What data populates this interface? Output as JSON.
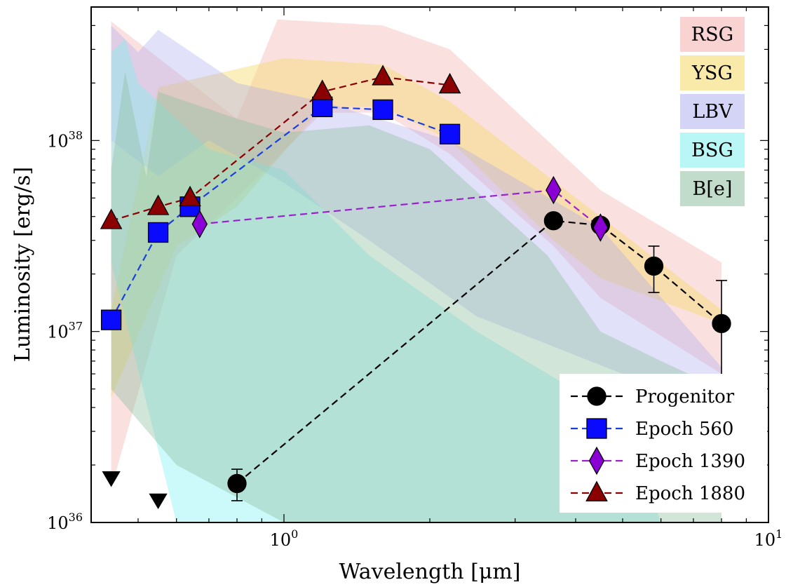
{
  "chart_data": {
    "type": "scatter",
    "xlabel": "Wavelength [μm]",
    "ylabel": "Luminosity [erg/s]",
    "x_scale": "log",
    "y_scale": "log",
    "xlim": [
      0.4,
      10
    ],
    "ylim": [
      1e+36,
      5e+38
    ],
    "grid": false,
    "x_ticks": [
      {
        "value": 1,
        "base": "10",
        "exp": "0"
      },
      {
        "value": 10,
        "base": "10",
        "exp": "1"
      }
    ],
    "y_ticks": [
      {
        "value": 1e+36,
        "base": "10",
        "exp": "36"
      },
      {
        "value": 1e+37,
        "base": "10",
        "exp": "37"
      },
      {
        "value": 1e+38,
        "base": "10",
        "exp": "38"
      }
    ],
    "bands": [
      {
        "name": "RSG",
        "color": "#f4a6a6",
        "opacity": 0.35,
        "upper": [
          [
            0.44,
            4.2e+38
          ],
          [
            0.8,
            1.3e+38
          ],
          [
            0.97,
            4.3e+38
          ],
          [
            1.6,
            4e+38
          ],
          [
            2.2,
            3e+38
          ],
          [
            4.5,
            5.5e+37
          ],
          [
            8.0,
            2.3e+37
          ]
        ],
        "lower": [
          [
            8.0,
            6e+36
          ],
          [
            4.5,
            1.5e+37
          ],
          [
            3.6,
            2.8e+37
          ],
          [
            2.2,
            8.5e+37
          ],
          [
            1.6,
            1.4e+38
          ],
          [
            1.2,
            1.4e+38
          ],
          [
            0.8,
            5e+37
          ],
          [
            0.6,
            2.5e+37
          ],
          [
            0.44,
            1.5e+36
          ]
        ]
      },
      {
        "name": "YSG",
        "color": "#f7dc6f",
        "opacity": 0.45,
        "upper": [
          [
            0.44,
            1.3e+37
          ],
          [
            0.55,
            1.9e+38
          ],
          [
            1.0,
            2.7e+38
          ],
          [
            1.6,
            2.5e+38
          ],
          [
            2.2,
            1.6e+38
          ],
          [
            4.5,
            4e+37
          ],
          [
            8.0,
            1.3e+37
          ]
        ],
        "lower": [
          [
            8.0,
            1.1e+37
          ],
          [
            4.5,
            1.9e+37
          ],
          [
            3.6,
            3e+37
          ],
          [
            2.2,
            1e+38
          ],
          [
            1.6,
            1.5e+38
          ],
          [
            1.2,
            1.5e+38
          ],
          [
            0.8,
            4.5e+37
          ],
          [
            0.6,
            2.8e+37
          ],
          [
            0.44,
            4.5e+36
          ]
        ]
      },
      {
        "name": "LBV",
        "color": "#a9a9ef",
        "opacity": 0.35,
        "upper": [
          [
            0.44,
            4e+38
          ],
          [
            0.5,
            2.9e+38
          ],
          [
            0.55,
            3.8e+38
          ],
          [
            0.8,
            2e+38
          ],
          [
            1.2,
            1.6e+38
          ],
          [
            2.2,
            1e+38
          ],
          [
            4.5,
            3.5e+37
          ],
          [
            8.0,
            6.5e+36
          ]
        ],
        "lower": [
          [
            8.0,
            5e+36
          ],
          [
            5.0,
            6e+36
          ],
          [
            2.5,
            1.2e+37
          ],
          [
            1.5,
            3e+37
          ],
          [
            1.0,
            6e+37
          ],
          [
            0.7,
            1e+38
          ],
          [
            0.55,
            6.5e+37
          ],
          [
            0.44,
            1e+38
          ]
        ]
      },
      {
        "name": "BSG",
        "color": "#7fefef",
        "opacity": 0.4,
        "upper": [
          [
            0.44,
            2.9e+38
          ],
          [
            0.47,
            3.4e+38
          ],
          [
            0.5,
            2e+38
          ],
          [
            0.7,
            9e+37
          ],
          [
            1.0,
            7e+37
          ],
          [
            1.5,
            2.5e+37
          ],
          [
            2.5,
            1e+37
          ],
          [
            5.0,
            3.5e+36
          ],
          [
            6.0,
            1e+36
          ]
        ],
        "lower": [
          [
            5.0,
            1e+36
          ],
          [
            2.0,
            1e+36
          ],
          [
            1.0,
            1e+36
          ],
          [
            0.6,
            1e+36
          ],
          [
            0.44,
            2.3e+37
          ]
        ]
      },
      {
        "name": "B[e]",
        "color": "#8fbfa0",
        "opacity": 0.4,
        "upper": [
          [
            0.44,
            7e+37
          ],
          [
            0.47,
            2.3e+38
          ],
          [
            0.52,
            6.5e+37
          ],
          [
            0.55,
            1.8e+38
          ],
          [
            0.8,
            1.3e+38
          ],
          [
            1.0,
            1.1e+38
          ],
          [
            1.5,
            1.2e+38
          ],
          [
            2.0,
            9e+37
          ],
          [
            3.5,
            2.5e+37
          ],
          [
            4.5,
            1e+37
          ],
          [
            6.0,
            7e+36
          ],
          [
            8.0,
            5e+36
          ]
        ],
        "lower": [
          [
            8.0,
            1e+36
          ],
          [
            4.5,
            1e+36
          ],
          [
            2.0,
            1e+36
          ],
          [
            1.0,
            1e+36
          ],
          [
            0.6,
            2e+36
          ],
          [
            0.44,
            5e+36
          ]
        ]
      }
    ],
    "series": [
      {
        "name": "Progenitor",
        "marker": "circle",
        "color": "#000000",
        "line_color": "#000000",
        "points": [
          {
            "x": 0.8,
            "y": 1.6e+36,
            "err": [
              1.3e+36,
              1.9e+36
            ]
          },
          {
            "x": 3.6,
            "y": 3.8e+37
          },
          {
            "x": 4.5,
            "y": 3.6e+37
          },
          {
            "x": 5.8,
            "y": 2.2e+37,
            "err": [
              1.6e+37,
              2.8e+37
            ]
          },
          {
            "x": 8.0,
            "y": 1.1e+37,
            "err": [
              5.5e+36,
              1.85e+37
            ]
          }
        ],
        "connect_from": 0,
        "upper_limits": [
          {
            "x": 0.44,
            "y": 1.7e+36
          },
          {
            "x": 0.55,
            "y": 1.3e+36
          }
        ]
      },
      {
        "name": "Epoch 560",
        "marker": "square",
        "color": "#0a0aff",
        "line_color": "#1a3fe0",
        "points": [
          {
            "x": 0.44,
            "y": 1.15e+37
          },
          {
            "x": 0.55,
            "y": 3.3e+37
          },
          {
            "x": 0.64,
            "y": 4.5e+37
          },
          {
            "x": 1.2,
            "y": 1.5e+38
          },
          {
            "x": 1.6,
            "y": 1.45e+38
          },
          {
            "x": 2.2,
            "y": 1.08e+38
          }
        ]
      },
      {
        "name": "Epoch 1390",
        "marker": "diamond",
        "color": "#8a00d4",
        "line_color": "#9b20d0",
        "points": [
          {
            "x": 0.67,
            "y": 3.65e+37
          },
          {
            "x": 3.6,
            "y": 5.5e+37
          },
          {
            "x": 4.5,
            "y": 3.5e+37
          }
        ]
      },
      {
        "name": "Epoch 1880",
        "marker": "triangle",
        "color": "#8b0000",
        "line_color": "#8b0000",
        "points": [
          {
            "x": 0.44,
            "y": 3.8e+37
          },
          {
            "x": 0.55,
            "y": 4.5e+37
          },
          {
            "x": 0.64,
            "y": 5e+37
          },
          {
            "x": 1.2,
            "y": 1.8e+38
          },
          {
            "x": 1.6,
            "y": 2.15e+38
          },
          {
            "x": 2.2,
            "y": 1.95e+38
          }
        ]
      }
    ],
    "legend_position": "lower-right",
    "band_legend_position": "upper-right"
  }
}
